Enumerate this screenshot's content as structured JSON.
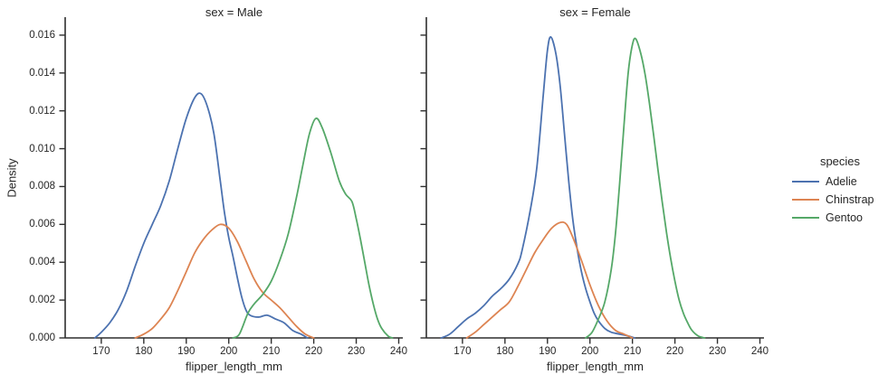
{
  "chart_data": {
    "type": "line",
    "subtype": "kde-density",
    "xlabel": "flipper_length_mm",
    "ylabel": "Density",
    "xlim": [
      161.5,
      240.96
    ],
    "ylim": [
      0,
      0.01695
    ],
    "xticks": [
      170,
      180,
      190,
      200,
      210,
      220,
      230,
      240
    ],
    "yticks": [
      0,
      0.002,
      0.004,
      0.006,
      0.008,
      0.01,
      0.012,
      0.014,
      0.016
    ],
    "ytick_labels": [
      "0.000",
      "0.002",
      "0.004",
      "0.006",
      "0.008",
      "0.010",
      "0.012",
      "0.014",
      "0.016"
    ],
    "grid": false,
    "legend": {
      "title": "species",
      "position": "right",
      "items": [
        {
          "label": "Adelie",
          "color": "#4c72b0"
        },
        {
          "label": "Chinstrap",
          "color": "#dd8452"
        },
        {
          "label": "Gentoo",
          "color": "#55a868"
        }
      ]
    },
    "facets": [
      {
        "title": "sex = Male",
        "series": [
          {
            "name": "Adelie",
            "color": "#4c72b0",
            "points": [
              [
                168.5,
                0
              ],
              [
                170,
                0.0003
              ],
              [
                172,
                0.0008
              ],
              [
                174,
                0.0015
              ],
              [
                176,
                0.0025
              ],
              [
                178,
                0.0038
              ],
              [
                180,
                0.005
              ],
              [
                182,
                0.006
              ],
              [
                184,
                0.007
              ],
              [
                186,
                0.0083
              ],
              [
                188,
                0.01
              ],
              [
                190,
                0.0116
              ],
              [
                192,
                0.0127
              ],
              [
                193.5,
                0.0129
              ],
              [
                195,
                0.0122
              ],
              [
                196.5,
                0.0108
              ],
              [
                198,
                0.0083
              ],
              [
                199,
                0.0066
              ],
              [
                200,
                0.0053
              ],
              [
                201,
                0.0043
              ],
              [
                202,
                0.0032
              ],
              [
                203,
                0.0022
              ],
              [
                204,
                0.0015
              ],
              [
                205,
                0.0012
              ],
              [
                207,
                0.0011
              ],
              [
                209,
                0.0012
              ],
              [
                211,
                0.001
              ],
              [
                213,
                0.0008
              ],
              [
                215,
                0.0004
              ],
              [
                217,
                0.0002
              ],
              [
                218.5,
                0
              ]
            ]
          },
          {
            "name": "Chinstrap",
            "color": "#dd8452",
            "points": [
              [
                178,
                0
              ],
              [
                180,
                0.0002
              ],
              [
                182,
                0.0005
              ],
              [
                184,
                0.001
              ],
              [
                186,
                0.0016
              ],
              [
                188,
                0.0025
              ],
              [
                190,
                0.0035
              ],
              [
                192,
                0.0045
              ],
              [
                194,
                0.0052
              ],
              [
                196,
                0.0057
              ],
              [
                198,
                0.006
              ],
              [
                200,
                0.0058
              ],
              [
                202,
                0.0051
              ],
              [
                204,
                0.0041
              ],
              [
                206,
                0.0031
              ],
              [
                208,
                0.0024
              ],
              [
                210,
                0.002
              ],
              [
                212,
                0.0016
              ],
              [
                214,
                0.0011
              ],
              [
                216,
                0.0006
              ],
              [
                218,
                0.0002
              ],
              [
                220,
                0
              ]
            ]
          },
          {
            "name": "Gentoo",
            "color": "#55a868",
            "points": [
              [
                201,
                0
              ],
              [
                202.5,
                0.0002
              ],
              [
                204.5,
                0.0013
              ],
              [
                206,
                0.0018
              ],
              [
                208,
                0.0023
              ],
              [
                210,
                0.003
              ],
              [
                212,
                0.0041
              ],
              [
                214,
                0.0055
              ],
              [
                216,
                0.0075
              ],
              [
                217.5,
                0.0092
              ],
              [
                219,
                0.0108
              ],
              [
                220.5,
                0.0116
              ],
              [
                222,
                0.0111
              ],
              [
                224,
                0.0098
              ],
              [
                226,
                0.0083
              ],
              [
                227.5,
                0.0076
              ],
              [
                229,
                0.0072
              ],
              [
                230,
                0.0063
              ],
              [
                231,
                0.0052
              ],
              [
                232,
                0.004
              ],
              [
                233,
                0.0028
              ],
              [
                234,
                0.0018
              ],
              [
                235,
                0.001
              ],
              [
                236,
                0.0005
              ],
              [
                237.5,
                0.0001
              ],
              [
                238.5,
                0
              ]
            ]
          }
        ]
      },
      {
        "title": "sex = Female",
        "series": [
          {
            "name": "Adelie",
            "color": "#4c72b0",
            "points": [
              [
                165,
                0
              ],
              [
                167,
                0.0002
              ],
              [
                169,
                0.0006
              ],
              [
                171,
                0.001
              ],
              [
                173,
                0.0013
              ],
              [
                175,
                0.0017
              ],
              [
                177,
                0.0022
              ],
              [
                179,
                0.0026
              ],
              [
                181,
                0.0031
              ],
              [
                183,
                0.0039
              ],
              [
                184,
                0.0046
              ],
              [
                186,
                0.0068
              ],
              [
                187.5,
                0.009
              ],
              [
                189,
                0.0128
              ],
              [
                190,
                0.0152
              ],
              [
                190.8,
                0.0159
              ],
              [
                192,
                0.015
              ],
              [
                193,
                0.0133
              ],
              [
                194,
                0.0108
              ],
              [
                195,
                0.0083
              ],
              [
                196,
                0.0062
              ],
              [
                197,
                0.0047
              ],
              [
                198,
                0.0035
              ],
              [
                199,
                0.0026
              ],
              [
                200,
                0.0019
              ],
              [
                201,
                0.0013
              ],
              [
                202,
                0.0009
              ],
              [
                203.5,
                0.0005
              ],
              [
                205,
                0.0003
              ],
              [
                207,
                0.0002
              ],
              [
                209,
                0.0001
              ],
              [
                210.5,
                0
              ]
            ]
          },
          {
            "name": "Chinstrap",
            "color": "#dd8452",
            "points": [
              [
                171,
                0
              ],
              [
                173,
                0.0003
              ],
              [
                175,
                0.0007
              ],
              [
                177,
                0.0011
              ],
              [
                179,
                0.0015
              ],
              [
                181,
                0.0019
              ],
              [
                183,
                0.0027
              ],
              [
                185,
                0.0036
              ],
              [
                187,
                0.0045
              ],
              [
                189,
                0.0052
              ],
              [
                191,
                0.0058
              ],
              [
                193,
                0.0061
              ],
              [
                194.5,
                0.006
              ],
              [
                196,
                0.0053
              ],
              [
                198,
                0.0041
              ],
              [
                200,
                0.0028
              ],
              [
                202,
                0.0017
              ],
              [
                204,
                0.0009
              ],
              [
                206,
                0.0004
              ],
              [
                208,
                0.0002
              ],
              [
                210,
                0
              ]
            ]
          },
          {
            "name": "Gentoo",
            "color": "#55a868",
            "points": [
              [
                199,
                0
              ],
              [
                200.5,
                0.0003
              ],
              [
                202,
                0.001
              ],
              [
                203.5,
                0.0019
              ],
              [
                205,
                0.0036
              ],
              [
                206,
                0.0055
              ],
              [
                207,
                0.0082
              ],
              [
                208,
                0.0112
              ],
              [
                209,
                0.014
              ],
              [
                210,
                0.0155
              ],
              [
                210.8,
                0.0158
              ],
              [
                212,
                0.015
              ],
              [
                213,
                0.0139
              ],
              [
                214,
                0.0124
              ],
              [
                215,
                0.0107
              ],
              [
                216,
                0.0089
              ],
              [
                217,
                0.0072
              ],
              [
                218,
                0.0056
              ],
              [
                219,
                0.0042
              ],
              [
                220,
                0.003
              ],
              [
                221,
                0.002
              ],
              [
                222,
                0.0013
              ],
              [
                223,
                0.0008
              ],
              [
                224,
                0.0004
              ],
              [
                225.5,
                0.0001
              ],
              [
                227,
                0
              ]
            ]
          }
        ]
      }
    ]
  },
  "colors": {
    "background": "#ffffff",
    "spine": "#2e2e2e",
    "text": "#262626",
    "adelie": "#4c72b0",
    "chinstrap": "#dd8452",
    "gentoo": "#55a868"
  }
}
